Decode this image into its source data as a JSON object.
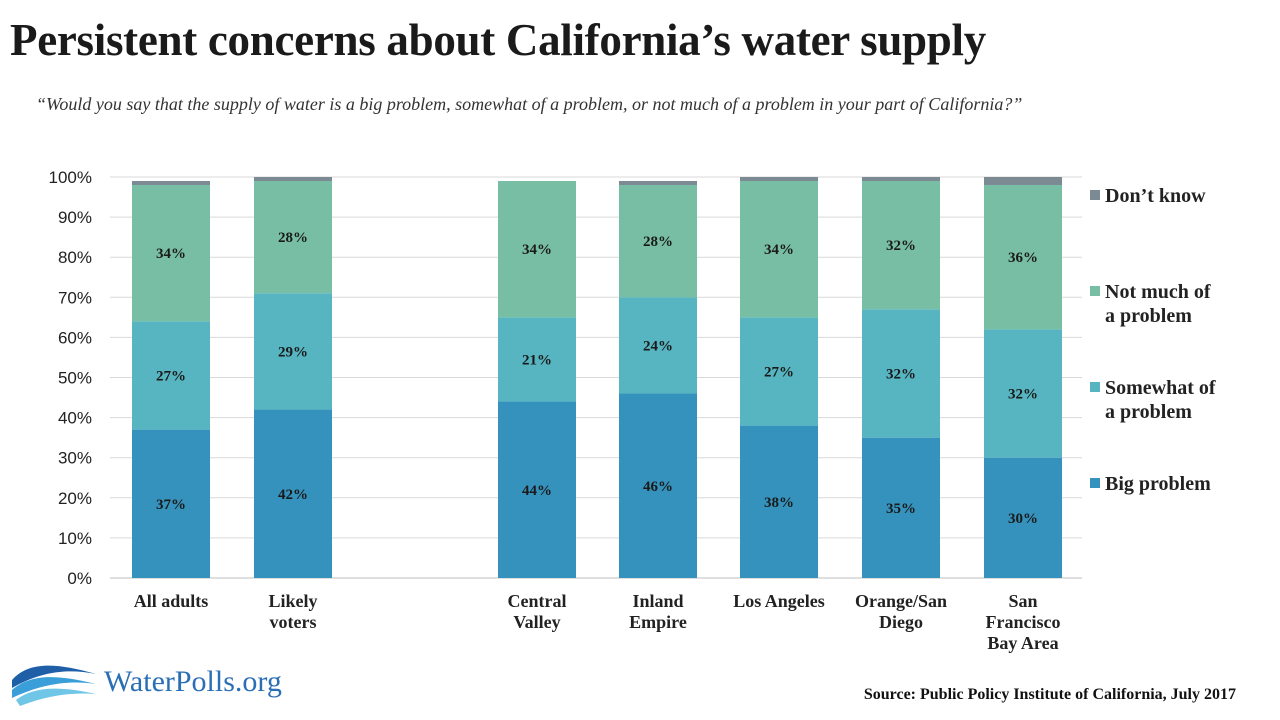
{
  "title": "Persistent concerns about California’s water supply",
  "subtitle": "“Would you say that the supply of  water is a big problem, somewhat of  a problem, or not much of  a problem in your part of  California?”",
  "source": "Source: Public Policy Institute of California, July 2017",
  "logo_text": "WaterPolls.org",
  "colors": {
    "big": "#3592bd",
    "somewhat": "#56b5c1",
    "notmuch": "#78bea4",
    "dontknow": "#7b8a93"
  },
  "chart_data": {
    "type": "bar",
    "stacked": true,
    "title": "Persistent concerns about California’s water supply",
    "categories": [
      [
        "All adults"
      ],
      [
        "Likely",
        "voters"
      ],
      [
        "Central",
        "Valley"
      ],
      [
        "Inland",
        "Empire"
      ],
      [
        "Los Angeles"
      ],
      [
        "Orange/San",
        "Diego"
      ],
      [
        "San",
        "Francisco",
        "Bay Area"
      ]
    ],
    "series": [
      {
        "name": "Big problem",
        "color_key": "big",
        "values": [
          37,
          42,
          44,
          46,
          38,
          35,
          30
        ]
      },
      {
        "name": "Somewhat of a problem",
        "color_key": "somewhat",
        "values": [
          27,
          29,
          21,
          24,
          27,
          32,
          32
        ]
      },
      {
        "name": "Not much of a problem",
        "color_key": "notmuch",
        "values": [
          34,
          28,
          34,
          28,
          34,
          32,
          36
        ]
      },
      {
        "name": "Don’t know",
        "color_key": "dontknow",
        "values": [
          1,
          1,
          0,
          1,
          1,
          1,
          2
        ]
      }
    ],
    "ylim": [
      0,
      100
    ],
    "yticks": [
      "0%",
      "10%",
      "20%",
      "30%",
      "40%",
      "50%",
      "60%",
      "70%",
      "80%",
      "90%",
      "100%"
    ],
    "grid": true,
    "legend_position": "right",
    "legend": [
      {
        "lines": [
          "Don’t know"
        ],
        "color_key": "dontknow"
      },
      {
        "lines": [
          "Not much of",
          "a problem"
        ],
        "color_key": "notmuch"
      },
      {
        "lines": [
          "Somewhat of",
          "a problem"
        ],
        "color_key": "somewhat"
      },
      {
        "lines": [
          "Big problem"
        ],
        "color_key": "big"
      }
    ]
  }
}
